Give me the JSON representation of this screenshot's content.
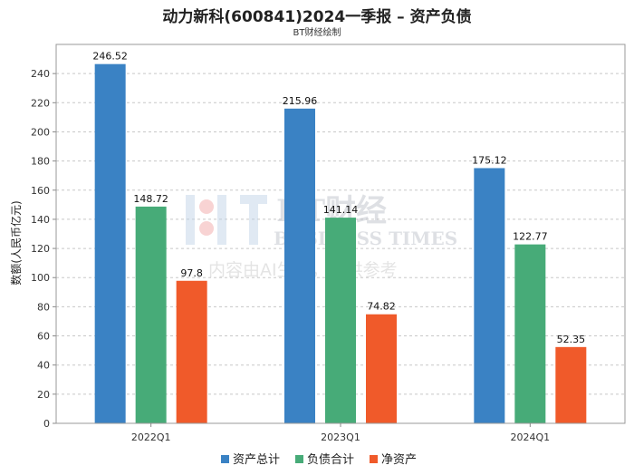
{
  "chart_data": {
    "type": "bar",
    "title": "动力新科(600841)2024一季报 – 资产负债",
    "subtitle": "BT财经绘制",
    "ylabel": "数额(人民币亿元)",
    "xlabel": "",
    "categories": [
      "2022Q1",
      "2023Q1",
      "2024Q1"
    ],
    "ylim": [
      0,
      260
    ],
    "yticks": [
      0,
      20,
      40,
      60,
      80,
      100,
      120,
      140,
      160,
      180,
      200,
      220,
      240
    ],
    "grid": true,
    "legend_position": "bottom",
    "series": [
      {
        "name": "资产总计",
        "color": "#3a82c4",
        "values": [
          246.52,
          215.96,
          175.12
        ],
        "labels": [
          "246.52",
          "215.96",
          "175.12"
        ]
      },
      {
        "name": "负债合计",
        "color": "#47ab78",
        "values": [
          148.72,
          141.14,
          122.77
        ],
        "labels": [
          "148.72",
          "141.14",
          "122.77"
        ]
      },
      {
        "name": "净资产",
        "color": "#f05a2a",
        "values": [
          97.8,
          74.82,
          52.35
        ],
        "labels": [
          "97.8",
          "74.82",
          "52.35"
        ]
      }
    ]
  },
  "watermark": {
    "brand_cn": "BT财经",
    "brand_en": "BUSINESS TIMES",
    "notice": "内容由AI生成，仅供参考"
  }
}
